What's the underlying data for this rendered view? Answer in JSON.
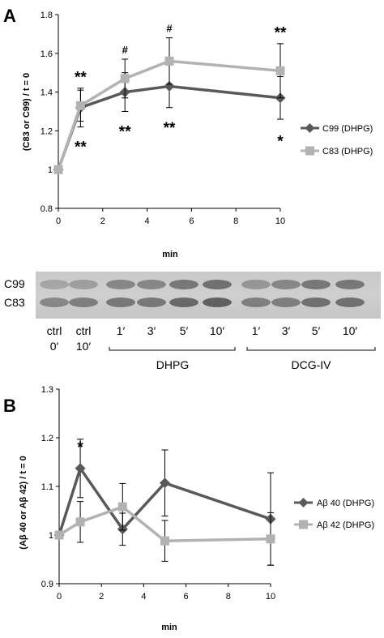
{
  "panel_a_label": "A",
  "panel_b_label": "B",
  "chart_data": [
    {
      "type": "line",
      "ylabel": "(C83 or C99) / t = 0",
      "xlabel": "min",
      "xlim": [
        0,
        10
      ],
      "ylim": [
        0.8,
        1.8
      ],
      "xticks": [
        "0",
        "2",
        "4",
        "6",
        "8",
        "10"
      ],
      "yticks": [
        "0.8",
        "1",
        "1.2",
        "1.4",
        "1.6",
        "1.8"
      ],
      "x": [
        0,
        1,
        3,
        5,
        10
      ],
      "series": [
        {
          "name": "C99 (DHPG)",
          "marker": "diamond",
          "color": "#595959",
          "values": [
            1.0,
            1.32,
            1.4,
            1.43,
            1.37
          ],
          "errors": [
            0.0,
            0.1,
            0.1,
            0.11,
            0.11
          ]
        },
        {
          "name": "C83 (DHPG)",
          "marker": "square",
          "color": "#b2b2b2",
          "values": [
            1.0,
            1.33,
            1.47,
            1.56,
            1.51
          ],
          "errors": [
            0.0,
            0.08,
            0.1,
            0.12,
            0.14
          ]
        }
      ],
      "annotations": [
        {
          "text": "**",
          "x": 1,
          "above": 1.5
        },
        {
          "text": "**",
          "x": 1,
          "below": 1.14
        },
        {
          "text": "#",
          "x": 3,
          "above": 1.6
        },
        {
          "text": "**",
          "x": 3,
          "below": 1.22
        },
        {
          "text": "#",
          "x": 5,
          "above": 1.71
        },
        {
          "text": "**",
          "x": 5,
          "below": 1.24
        },
        {
          "text": "**",
          "x": 10,
          "above": 1.73
        },
        {
          "text": "*",
          "x": 10,
          "below": 1.17
        }
      ]
    },
    {
      "type": "line",
      "ylabel": "(Aβ 40 or Aβ 42) / t = 0",
      "xlabel": "min",
      "xlim": [
        0,
        10
      ],
      "ylim": [
        0.9,
        1.3
      ],
      "xticks": [
        "0",
        "2",
        "4",
        "6",
        "8",
        "10"
      ],
      "yticks": [
        "0.9",
        "1",
        "1.1",
        "1.2",
        "1.3"
      ],
      "x": [
        0,
        1,
        3,
        5,
        10
      ],
      "series": [
        {
          "name": "Aβ 40 (DHPG)",
          "marker": "diamond",
          "color": "#595959",
          "values": [
            1.0,
            1.137,
            1.012,
            1.107,
            1.033
          ],
          "errors": [
            0.0,
            0.06,
            0.033,
            0.068,
            0.095
          ]
        },
        {
          "name": "Aβ 42 (DHPG)",
          "marker": "square",
          "color": "#b2b2b2",
          "values": [
            1.0,
            1.027,
            1.058,
            0.988,
            0.992
          ],
          "errors": [
            0.0,
            0.042,
            0.048,
            0.042,
            0.054
          ]
        }
      ],
      "annotations": [
        {
          "text": "*",
          "x": 1,
          "above": 1.19
        }
      ]
    }
  ],
  "blot": {
    "band_labels": [
      "C99",
      "C83"
    ],
    "lane_labels": [
      {
        "line1": "ctrl",
        "line2": "0′"
      },
      {
        "line1": "ctrl",
        "line2": "10′"
      },
      {
        "line1": "1′",
        "line2": ""
      },
      {
        "line1": "3′",
        "line2": ""
      },
      {
        "line1": "5′",
        "line2": ""
      },
      {
        "line1": "10′",
        "line2": ""
      },
      {
        "line1": "1′",
        "line2": ""
      },
      {
        "line1": "3′",
        "line2": ""
      },
      {
        "line1": "5′",
        "line2": ""
      },
      {
        "line1": "10′",
        "line2": ""
      }
    ],
    "groups": [
      "DHPG",
      "DCG-IV"
    ],
    "lane_intensity_upper": [
      0.25,
      0.3,
      0.45,
      0.45,
      0.55,
      0.6,
      0.35,
      0.45,
      0.55,
      0.55
    ],
    "lane_intensity_lower": [
      0.45,
      0.5,
      0.55,
      0.55,
      0.65,
      0.7,
      0.5,
      0.5,
      0.6,
      0.6
    ]
  }
}
